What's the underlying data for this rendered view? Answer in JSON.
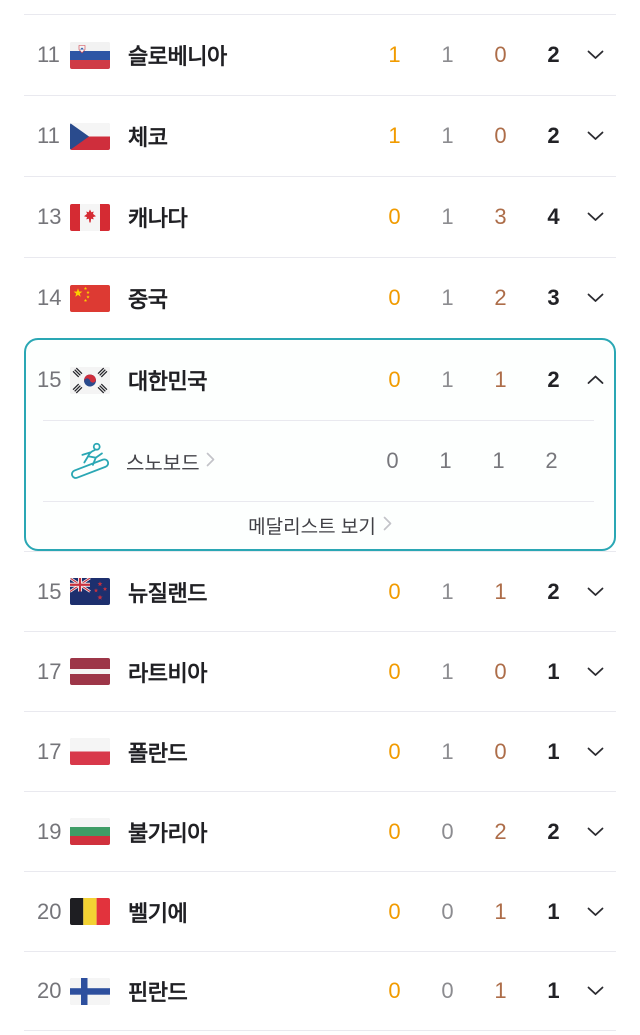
{
  "accent_color": "#2aa7b4",
  "medal_colors": {
    "gold": "#f19b00",
    "silver": "#8c8c90",
    "bronze": "#ad6d49",
    "total": "#222226"
  },
  "icons": {
    "chevron_down": "chevron-down-icon",
    "chevron_up": "chevron-up-icon",
    "chevron_right": "chevron-right-icon",
    "sport": "snowboard-icon"
  },
  "table": {
    "rows": [
      {
        "rank": "11",
        "country": "슬로베니아",
        "flag": "slovenia",
        "gold": "1",
        "silver": "1",
        "bronze": "0",
        "total": "2",
        "expanded": false
      },
      {
        "rank": "11",
        "country": "체코",
        "flag": "czechia",
        "gold": "1",
        "silver": "1",
        "bronze": "0",
        "total": "2",
        "expanded": false
      },
      {
        "rank": "13",
        "country": "캐나다",
        "flag": "canada",
        "gold": "0",
        "silver": "1",
        "bronze": "3",
        "total": "4",
        "expanded": false
      },
      {
        "rank": "14",
        "country": "중국",
        "flag": "china",
        "gold": "0",
        "silver": "1",
        "bronze": "2",
        "total": "3",
        "expanded": false
      },
      {
        "rank": "15",
        "country": "대한민국",
        "flag": "south-korea",
        "gold": "0",
        "silver": "1",
        "bronze": "1",
        "total": "2",
        "expanded": true,
        "details": {
          "sports": [
            {
              "icon": "snowboard-icon",
              "label": "스노보드",
              "gold": "0",
              "silver": "1",
              "bronze": "1",
              "total": "2"
            }
          ],
          "footer_link": "메달리스트 보기"
        }
      },
      {
        "rank": "15",
        "country": "뉴질랜드",
        "flag": "new-zealand",
        "gold": "0",
        "silver": "1",
        "bronze": "1",
        "total": "2",
        "expanded": false
      },
      {
        "rank": "17",
        "country": "라트비아",
        "flag": "latvia",
        "gold": "0",
        "silver": "1",
        "bronze": "0",
        "total": "1",
        "expanded": false
      },
      {
        "rank": "17",
        "country": "폴란드",
        "flag": "poland",
        "gold": "0",
        "silver": "1",
        "bronze": "0",
        "total": "1",
        "expanded": false
      },
      {
        "rank": "19",
        "country": "불가리아",
        "flag": "bulgaria",
        "gold": "0",
        "silver": "0",
        "bronze": "2",
        "total": "2",
        "expanded": false
      },
      {
        "rank": "20",
        "country": "벨기에",
        "flag": "belgium",
        "gold": "0",
        "silver": "0",
        "bronze": "1",
        "total": "1",
        "expanded": false
      },
      {
        "rank": "20",
        "country": "핀란드",
        "flag": "finland",
        "gold": "0",
        "silver": "0",
        "bronze": "1",
        "total": "1",
        "expanded": false
      }
    ]
  }
}
